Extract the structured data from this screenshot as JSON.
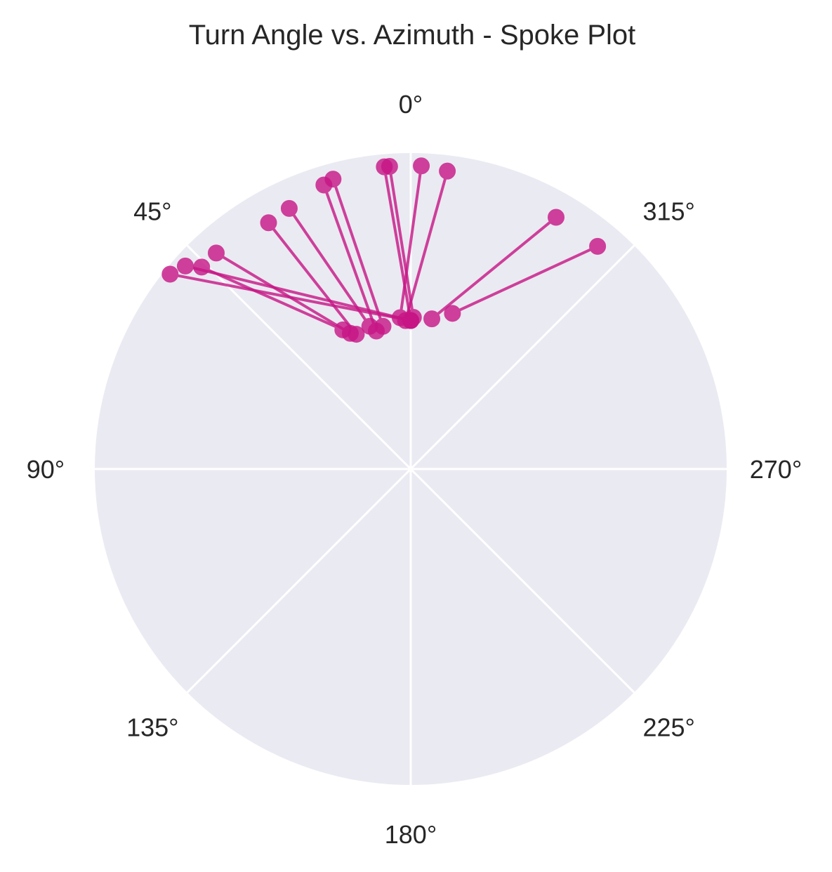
{
  "chart_data": {
    "type": "scatter",
    "subtype": "polar-spoke",
    "title": "Turn Angle vs. Azimuth - Spoke Plot",
    "theta_zero_location": "N",
    "theta_direction": "counterclockwise",
    "theta_ticks": [
      "0°",
      "45°",
      "90°",
      "135°",
      "180°",
      "225°",
      "270°",
      "315°"
    ],
    "theta_tick_values": [
      0,
      45,
      90,
      135,
      180,
      225,
      270,
      315
    ],
    "radial_ticks_visible": false,
    "rlim": [
      0,
      1
    ],
    "grid": true,
    "color": "#c71585",
    "background": "#eaeaf2",
    "spokes": [
      {
        "start": {
          "theta": 4,
          "r": 0.48
        },
        "end": {
          "theta": -2,
          "r": 0.96
        }
      },
      {
        "start": {
          "theta": 2,
          "r": 0.47
        },
        "end": {
          "theta": -7,
          "r": 0.95
        }
      },
      {
        "start": {
          "theta": 0,
          "r": 0.47
        },
        "end": {
          "theta": 5,
          "r": 0.96
        }
      },
      {
        "start": {
          "theta": -1,
          "r": 0.48
        },
        "end": {
          "theta": 4,
          "r": 0.96
        }
      },
      {
        "start": {
          "theta": -8,
          "r": 0.48
        },
        "end": {
          "theta": -30,
          "r": 0.92
        }
      },
      {
        "start": {
          "theta": -15,
          "r": 0.51
        },
        "end": {
          "theta": -40,
          "r": 0.92
        }
      },
      {
        "start": {
          "theta": 11,
          "r": 0.46
        },
        "end": {
          "theta": 15,
          "r": 0.95
        }
      },
      {
        "start": {
          "theta": 14,
          "r": 0.45
        },
        "end": {
          "theta": 17,
          "r": 0.94
        }
      },
      {
        "start": {
          "theta": 16,
          "r": 0.47
        },
        "end": {
          "theta": 25,
          "r": 0.91
        }
      },
      {
        "start": {
          "theta": 22,
          "r": 0.46
        },
        "end": {
          "theta": 30,
          "r": 0.9
        }
      },
      {
        "start": {
          "theta": 24,
          "r": 0.47
        },
        "end": {
          "theta": 42,
          "r": 0.92
        }
      },
      {
        "start": {
          "theta": 26,
          "r": 0.49
        },
        "end": {
          "theta": 46,
          "r": 0.92
        }
      },
      {
        "start": {
          "theta": 0,
          "r": 0.47
        },
        "end": {
          "theta": 48,
          "r": 0.96
        }
      },
      {
        "start": {
          "theta": 0,
          "r": 0.47
        },
        "end": {
          "theta": 51,
          "r": 0.98
        }
      }
    ]
  }
}
